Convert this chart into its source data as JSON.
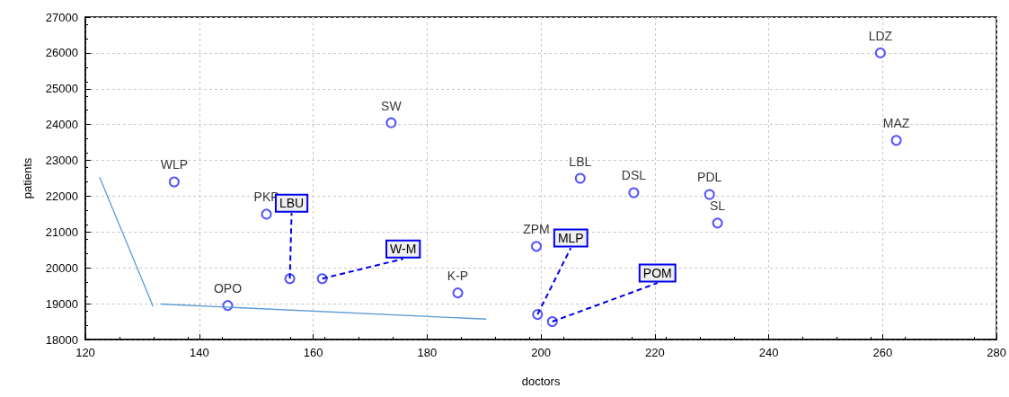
{
  "chart_data": {
    "type": "scatter",
    "xlabel": "doctors",
    "ylabel": "patients",
    "xlim": [
      120,
      280
    ],
    "xticks": [
      120,
      140,
      160,
      180,
      200,
      220,
      240,
      260,
      280
    ],
    "ylim": [
      18000,
      27000
    ],
    "yticks": [
      18000,
      19000,
      20000,
      21000,
      22000,
      23000,
      24000,
      25000,
      26000,
      27000
    ],
    "grid": true,
    "series": [
      {
        "color": "#2a2aff",
        "marker": "circle",
        "x": [
          135.6,
          151.8,
          145.0,
          155.9,
          161.6,
          173.7,
          185.4,
          199.2,
          199.4,
          202.0,
          206.9,
          216.3,
          229.6,
          231.0,
          259.6,
          262.4
        ],
        "values": [
          22400,
          21500,
          18950,
          19700,
          19700,
          24050,
          19300,
          20600,
          18700,
          18500,
          22500,
          22100,
          22050,
          21250,
          26000,
          23560
        ],
        "value_labels": [
          "WLP",
          "PKP",
          "OPO",
          null,
          null,
          "SW",
          "K-P",
          "ZPM",
          null,
          null,
          "LBL",
          "DSL",
          "PDL",
          "SL",
          "LDZ",
          "MAZ"
        ]
      },
      {
        "type": "line",
        "color": "#5b9bd5",
        "marker": "none",
        "x": [
          122.5,
          131.9
        ],
        "values": [
          22530,
          18920
        ]
      },
      {
        "type": "line",
        "color": "#5b9bd5",
        "marker": "none",
        "x": [
          133.2,
          190.4
        ],
        "values": [
          18990,
          18570
        ]
      }
    ],
    "annotations": [
      {
        "text": "LBU",
        "x": 155.9,
        "y": 19700
      },
      {
        "text": "W-M",
        "x": 161.6,
        "y": 19700
      },
      {
        "text": "MLP",
        "x": 199.4,
        "y": 18700
      },
      {
        "text": "POM",
        "x": 202.0,
        "y": 18500
      }
    ]
  }
}
